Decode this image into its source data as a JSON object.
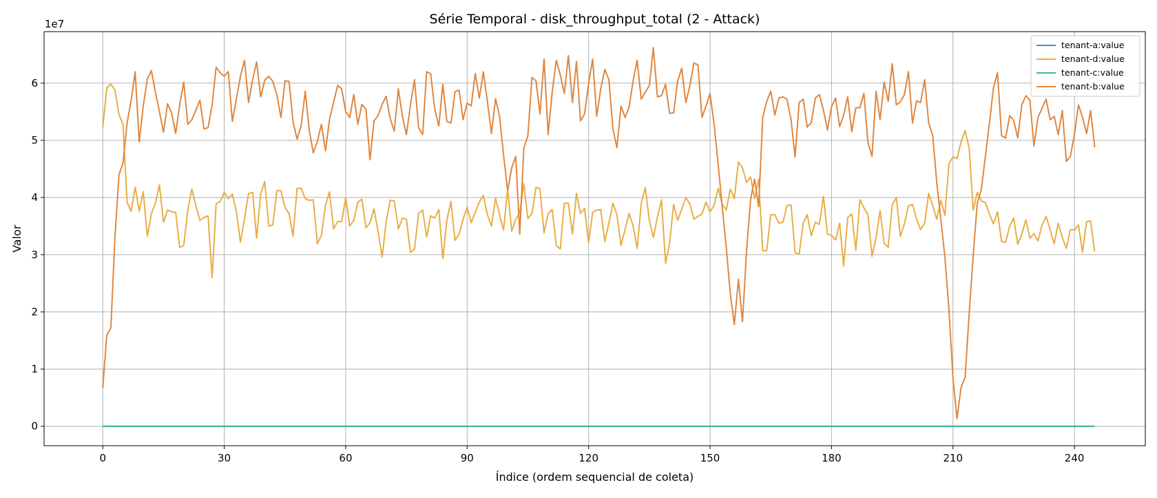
{
  "chart_data": {
    "type": "line",
    "title": "Série Temporal - disk_throughput_total (2 - Attack)",
    "xlabel": "Índice (ordem sequencial de coleta)",
    "ylabel": "Valor",
    "y_offset_label": "1e7",
    "y_scale": 10000000,
    "xlim": [
      -14.5,
      257.5
    ],
    "ylim": [
      -0.34,
      6.9
    ],
    "x_ticks": [
      0,
      30,
      60,
      90,
      120,
      150,
      180,
      210,
      240
    ],
    "y_ticks": [
      0,
      1,
      2,
      3,
      4,
      5,
      6
    ],
    "grid": true,
    "legend_position": "top-right",
    "series": [
      {
        "name": "tenant-a:value",
        "color": "#3a8fd0",
        "x": [
          0,
          245
        ],
        "values": [
          0,
          0
        ]
      },
      {
        "name": "tenant-d:value",
        "color": "#e8ad45",
        "x": [
          0,
          1,
          2,
          3,
          4,
          5,
          6,
          7,
          8,
          9,
          10,
          11,
          12,
          13,
          14,
          15,
          16,
          17,
          18,
          19,
          20,
          21,
          22,
          23,
          24,
          25,
          26,
          27,
          28,
          29,
          30,
          31,
          32,
          33,
          34,
          35,
          36,
          37,
          38,
          39,
          40,
          41,
          42,
          43,
          44,
          45,
          46,
          47,
          48,
          49,
          50,
          51,
          52,
          53,
          54,
          55,
          56,
          57,
          58,
          59,
          60,
          61,
          62,
          63,
          64,
          65,
          66,
          67,
          68,
          69,
          70,
          71,
          72,
          73,
          74,
          75,
          76,
          77,
          78,
          79,
          80,
          81,
          82,
          83,
          84,
          85,
          86,
          87,
          88,
          89,
          90,
          91,
          92,
          93,
          94,
          95,
          96,
          97,
          98,
          99,
          100,
          101,
          102,
          103,
          104,
          105,
          106,
          107,
          108,
          109,
          110,
          111,
          112,
          113,
          114,
          115,
          116,
          117,
          118,
          119,
          120,
          121,
          122,
          123,
          124,
          125,
          126,
          127,
          128,
          129,
          130,
          131,
          132,
          133,
          134,
          135,
          136,
          137,
          138,
          139,
          140,
          141,
          142,
          143,
          144,
          145,
          146,
          147,
          148,
          149,
          150,
          151,
          152,
          153,
          154,
          155,
          156,
          157,
          158,
          159,
          160,
          161,
          162,
          163,
          164,
          165,
          166,
          167,
          168,
          169,
          170,
          171,
          172,
          173,
          174,
          175,
          176,
          177,
          178,
          179,
          180,
          181,
          182,
          183,
          184,
          185,
          186,
          187,
          188,
          189,
          190,
          191,
          192,
          193,
          194,
          195,
          196,
          197,
          198,
          199,
          200,
          201,
          202,
          203,
          204,
          205,
          206,
          207,
          208,
          209,
          210,
          211,
          212,
          213,
          214,
          215,
          216,
          217,
          218,
          219,
          220,
          221,
          222,
          223,
          224,
          225,
          226,
          227,
          228,
          229,
          230,
          231,
          232,
          233,
          234,
          235,
          236,
          237,
          238,
          239,
          240,
          241,
          242,
          243,
          244,
          245
        ],
        "values": [
          5.22,
          5.92,
          5.98,
          5.88,
          5.45,
          5.28,
          3.92,
          3.76,
          4.18,
          3.76,
          4.1,
          3.32,
          3.72,
          3.9,
          4.22,
          3.57,
          3.78,
          3.75,
          3.74,
          3.13,
          3.16,
          3.78,
          4.15,
          3.85,
          3.6,
          3.65,
          3.68,
          2.6,
          3.89,
          3.93,
          4.09,
          3.98,
          4.06,
          3.75,
          3.22,
          3.62,
          4.07,
          4.09,
          3.29,
          4.06,
          4.28,
          3.5,
          3.52,
          4.12,
          4.12,
          3.83,
          3.72,
          3.32,
          4.16,
          4.16,
          3.98,
          3.95,
          3.96,
          3.19,
          3.34,
          3.86,
          4.1,
          3.45,
          3.58,
          3.58,
          4.0,
          3.5,
          3.6,
          3.92,
          3.97,
          3.47,
          3.56,
          3.8,
          3.4,
          2.96,
          3.58,
          3.95,
          3.94,
          3.45,
          3.64,
          3.62,
          3.04,
          3.1,
          3.72,
          3.78,
          3.31,
          3.68,
          3.64,
          3.79,
          2.93,
          3.61,
          3.93,
          3.25,
          3.36,
          3.62,
          3.83,
          3.56,
          3.74,
          3.92,
          4.04,
          3.7,
          3.5,
          3.99,
          3.7,
          3.43,
          4.15,
          3.41,
          3.62,
          3.74,
          4.24,
          3.63,
          3.72,
          4.18,
          4.15,
          3.38,
          3.72,
          3.79,
          3.16,
          3.1,
          3.9,
          3.9,
          3.36,
          4.07,
          3.72,
          3.81,
          3.21,
          3.74,
          3.78,
          3.79,
          3.23,
          3.55,
          3.9,
          3.7,
          3.16,
          3.44,
          3.72,
          3.5,
          3.11,
          3.9,
          4.17,
          3.6,
          3.3,
          3.66,
          3.96,
          2.85,
          3.2,
          3.88,
          3.6,
          3.8,
          4.0,
          3.89,
          3.62,
          3.67,
          3.71,
          3.92,
          3.75,
          3.86,
          4.16,
          3.88,
          3.78,
          4.15,
          3.98,
          4.62,
          4.52,
          4.26,
          4.36,
          3.98,
          4.32,
          3.07,
          3.07,
          3.7,
          3.7,
          3.55,
          3.57,
          3.86,
          3.87,
          3.04,
          3.01,
          3.55,
          3.7,
          3.33,
          3.57,
          3.53,
          4.02,
          3.36,
          3.34,
          3.26,
          3.55,
          2.8,
          3.65,
          3.71,
          3.08,
          3.96,
          3.82,
          3.7,
          2.97,
          3.3,
          3.77,
          3.2,
          3.13,
          3.87,
          4.0,
          3.32,
          3.54,
          3.85,
          3.88,
          3.62,
          3.44,
          3.55,
          4.07,
          3.86,
          3.62,
          3.95,
          3.69,
          4.59,
          4.71,
          4.68,
          4.97,
          5.17,
          4.86,
          3.78,
          4.09,
          3.94,
          3.91,
          3.71,
          3.54,
          3.75,
          3.23,
          3.22,
          3.5,
          3.64,
          3.18,
          3.36,
          3.61,
          3.29,
          3.37,
          3.24,
          3.52,
          3.67,
          3.43,
          3.19,
          3.55,
          3.3,
          3.11,
          3.44,
          3.43,
          3.52,
          3.04,
          3.58,
          3.59,
          3.06
        ]
      },
      {
        "name": "tenant-c:value",
        "color": "#3bb896",
        "x": [
          0,
          245
        ],
        "values": [
          0,
          0
        ]
      },
      {
        "name": "tenant-b:value",
        "color": "#e0863e",
        "x": [
          0,
          1,
          2,
          3,
          4,
          5,
          6,
          7,
          8,
          9,
          10,
          11,
          12,
          13,
          14,
          15,
          16,
          17,
          18,
          19,
          20,
          21,
          22,
          23,
          24,
          25,
          26,
          27,
          28,
          29,
          30,
          31,
          32,
          33,
          34,
          35,
          36,
          37,
          38,
          39,
          40,
          41,
          42,
          43,
          44,
          45,
          46,
          47,
          48,
          49,
          50,
          51,
          52,
          53,
          54,
          55,
          56,
          57,
          58,
          59,
          60,
          61,
          62,
          63,
          64,
          65,
          66,
          67,
          68,
          69,
          70,
          71,
          72,
          73,
          74,
          75,
          76,
          77,
          78,
          79,
          80,
          81,
          82,
          83,
          84,
          85,
          86,
          87,
          88,
          89,
          90,
          91,
          92,
          93,
          94,
          95,
          96,
          97,
          98,
          99,
          100,
          101,
          102,
          103,
          104,
          105,
          106,
          107,
          108,
          109,
          110,
          111,
          112,
          113,
          114,
          115,
          116,
          117,
          118,
          119,
          120,
          121,
          122,
          123,
          124,
          125,
          126,
          127,
          128,
          129,
          130,
          131,
          132,
          133,
          134,
          135,
          136,
          137,
          138,
          139,
          140,
          141,
          142,
          143,
          144,
          145,
          146,
          147,
          148,
          149,
          150,
          151,
          152,
          153,
          154,
          155,
          156,
          157,
          158,
          159,
          160,
          161,
          162,
          163,
          164,
          165,
          166,
          167,
          168,
          169,
          170,
          171,
          172,
          173,
          174,
          175,
          176,
          177,
          178,
          179,
          180,
          181,
          182,
          183,
          184,
          185,
          186,
          187,
          188,
          189,
          190,
          191,
          192,
          193,
          194,
          195,
          196,
          197,
          198,
          199,
          200,
          201,
          202,
          203,
          204,
          205,
          206,
          207,
          208,
          209,
          210,
          211,
          212,
          213,
          214,
          215,
          216,
          217,
          218,
          219,
          220,
          221,
          222,
          223,
          224,
          225,
          226,
          227,
          228,
          229,
          230,
          231,
          232,
          233,
          234,
          235,
          236,
          237,
          238,
          239,
          240,
          241,
          242,
          243,
          244,
          245
        ],
        "values": [
          0.67,
          1.6,
          1.72,
          3.3,
          4.4,
          4.6,
          5.3,
          5.7,
          6.2,
          4.97,
          5.6,
          6.07,
          6.22,
          5.84,
          5.5,
          5.14,
          5.64,
          5.48,
          5.12,
          5.62,
          6.02,
          5.28,
          5.36,
          5.53,
          5.7,
          5.2,
          5.22,
          5.62,
          6.28,
          6.18,
          6.12,
          6.2,
          5.33,
          5.72,
          6.12,
          6.4,
          5.66,
          6.06,
          6.37,
          5.76,
          6.05,
          6.12,
          6.03,
          5.8,
          5.4,
          6.04,
          6.03,
          5.32,
          5.02,
          5.26,
          5.86,
          5.17,
          4.78,
          4.98,
          5.28,
          4.82,
          5.36,
          5.66,
          5.96,
          5.9,
          5.5,
          5.4,
          5.8,
          5.28,
          5.63,
          5.54,
          4.66,
          5.34,
          5.43,
          5.63,
          5.77,
          5.38,
          5.16,
          5.9,
          5.42,
          5.1,
          5.62,
          6.06,
          5.22,
          5.1,
          6.2,
          6.16,
          5.54,
          5.25,
          5.98,
          5.33,
          5.3,
          5.85,
          5.88,
          5.36,
          5.65,
          5.6,
          6.17,
          5.74,
          6.2,
          5.68,
          5.12,
          5.73,
          5.42,
          4.74,
          4.12,
          4.52,
          4.72,
          3.36,
          4.86,
          5.08,
          6.1,
          6.04,
          5.46,
          6.42,
          5.1,
          5.84,
          6.4,
          6.15,
          5.82,
          6.48,
          5.66,
          6.38,
          5.34,
          5.46,
          6.0,
          6.42,
          5.42,
          5.9,
          6.24,
          6.06,
          5.2,
          4.87,
          5.6,
          5.4,
          5.58,
          6.04,
          6.4,
          5.72,
          5.84,
          5.96,
          6.62,
          5.76,
          5.78,
          5.98,
          5.47,
          5.48,
          6.04,
          6.26,
          5.66,
          5.95,
          6.35,
          6.32,
          5.4,
          5.6,
          5.82,
          5.28,
          4.58,
          3.84,
          3.12,
          2.32,
          1.78,
          2.57,
          1.83,
          3.06,
          3.96,
          4.32,
          3.84,
          5.4,
          5.68,
          5.86,
          5.44,
          5.74,
          5.76,
          5.72,
          5.36,
          4.71,
          5.66,
          5.72,
          5.23,
          5.31,
          5.74,
          5.8,
          5.53,
          5.18,
          5.59,
          5.74,
          5.24,
          5.44,
          5.76,
          5.15,
          5.57,
          5.57,
          5.82,
          4.96,
          4.72,
          5.86,
          5.36,
          6.02,
          5.68,
          6.34,
          5.62,
          5.67,
          5.8,
          6.2,
          5.3,
          5.69,
          5.66,
          6.06,
          5.3,
          5.08,
          4.26,
          3.62,
          2.96,
          2.04,
          0.84,
          0.13,
          0.68,
          0.86,
          1.98,
          3.0,
          3.9,
          4.14,
          4.72,
          5.3,
          5.92,
          6.18,
          5.08,
          5.04,
          5.43,
          5.35,
          5.04,
          5.62,
          5.78,
          5.7,
          4.9,
          5.4,
          5.56,
          5.72,
          5.36,
          5.42,
          5.1,
          5.52,
          4.63,
          4.72,
          5.1,
          5.62,
          5.4,
          5.12,
          5.52,
          4.88
        ]
      }
    ]
  }
}
